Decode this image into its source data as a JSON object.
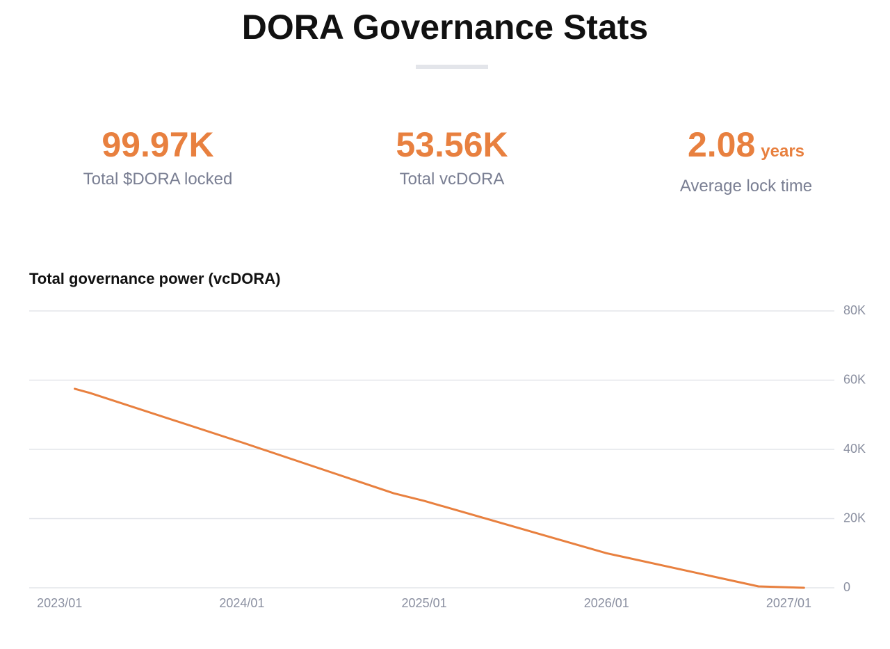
{
  "header": {
    "title": "DORA Governance Stats"
  },
  "stats": [
    {
      "value": "99.97K",
      "label": "Total $DORA locked"
    },
    {
      "value": "53.56K",
      "label": "Total vcDORA"
    },
    {
      "value": "2.08",
      "unit": "years",
      "label": "Average lock time"
    }
  ],
  "chart_data": {
    "type": "line",
    "title": "Total governance power (vcDORA)",
    "x": [
      "2023/02",
      "2023/03",
      "2024/01",
      "2024/11",
      "2025/01",
      "2026/01",
      "2026/11",
      "2027/02"
    ],
    "values": [
      57500,
      56300,
      42000,
      27300,
      25100,
      10000,
      400,
      0
    ],
    "color": "#e8803f",
    "xlim": [
      "2022/11",
      "2027/04"
    ],
    "xticks": [
      "2023/01",
      "2024/01",
      "2025/01",
      "2026/01",
      "2027/01"
    ],
    "ylim": [
      0,
      80000
    ],
    "yticks": [
      0,
      {
        "value": 20000,
        "label": "20K"
      },
      {
        "value": 40000,
        "label": "40K"
      },
      {
        "value": 60000,
        "label": "60K"
      },
      {
        "value": 80000,
        "label": "80K"
      }
    ],
    "grid": true
  }
}
